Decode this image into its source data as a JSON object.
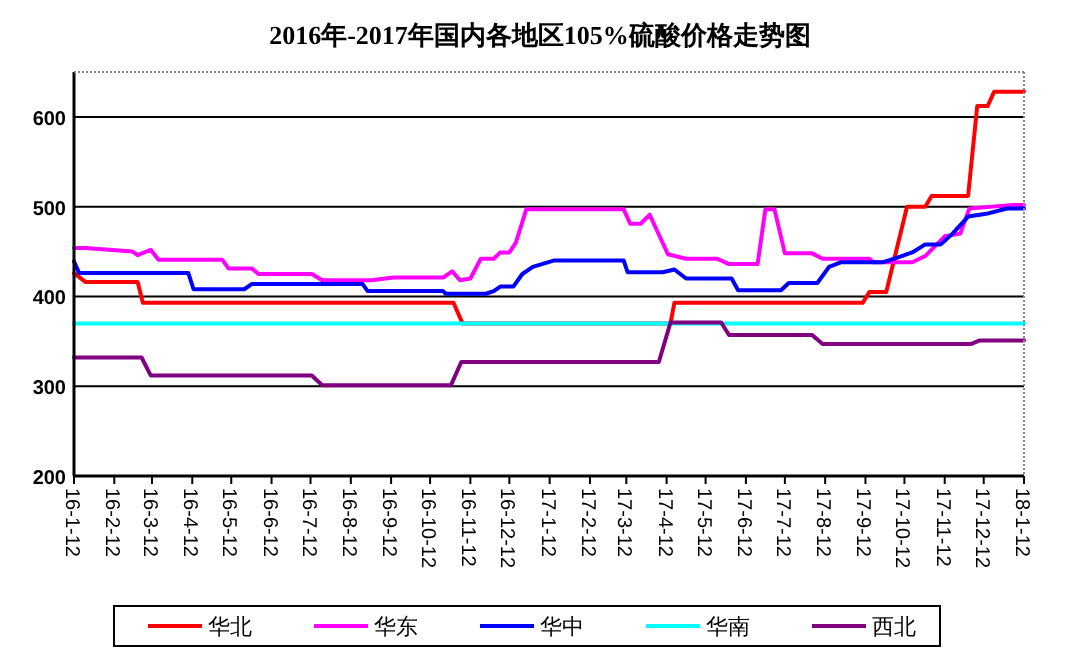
{
  "chart_data": {
    "type": "line",
    "title": "2016年-2017年国内各地区105%硫酸价格走势图",
    "xlim": [
      "2016-01-12",
      "2018-01-12"
    ],
    "ylim": [
      200,
      650
    ],
    "yticks": [
      200,
      300,
      400,
      500,
      600
    ],
    "xticks": [
      {
        "value": "2016-01-12",
        "label": "16-1-12"
      },
      {
        "value": "2016-02-12",
        "label": "16-2-12"
      },
      {
        "value": "2016-03-12",
        "label": "16-3-12"
      },
      {
        "value": "2016-04-12",
        "label": "16-4-12"
      },
      {
        "value": "2016-05-12",
        "label": "16-5-12"
      },
      {
        "value": "2016-06-12",
        "label": "16-6-12"
      },
      {
        "value": "2016-07-12",
        "label": "16-7-12"
      },
      {
        "value": "2016-08-12",
        "label": "16-8-12"
      },
      {
        "value": "2016-09-12",
        "label": "16-9-12"
      },
      {
        "value": "2016-10-12",
        "label": "16-10-12"
      },
      {
        "value": "2016-11-12",
        "label": "16-11-12"
      },
      {
        "value": "2016-12-12",
        "label": "16-12-12"
      },
      {
        "value": "2017-01-12",
        "label": "17-1-12"
      },
      {
        "value": "2017-02-12",
        "label": "17-2-12"
      },
      {
        "value": "2017-03-12",
        "label": "17-3-12"
      },
      {
        "value": "2017-04-12",
        "label": "17-4-12"
      },
      {
        "value": "2017-05-12",
        "label": "17-5-12"
      },
      {
        "value": "2017-06-12",
        "label": "17-6-12"
      },
      {
        "value": "2017-07-12",
        "label": "17-7-12"
      },
      {
        "value": "2017-08-12",
        "label": "17-8-12"
      },
      {
        "value": "2017-09-12",
        "label": "17-9-12"
      },
      {
        "value": "2017-10-12",
        "label": "17-10-12"
      },
      {
        "value": "2017-11-12",
        "label": "17-11-12"
      },
      {
        "value": "2017-12-12",
        "label": "17-12-12"
      },
      {
        "value": "2018-01-12",
        "label": "18-1-12"
      }
    ],
    "grid": "y",
    "legend": "bottom",
    "marker": "none",
    "line_style": "solid",
    "series": [
      {
        "name": "华北",
        "color": "#ff0000",
        "x": [
          "2016-01-12",
          "2016-01-21",
          "2016-03-01",
          "2016-03-05",
          "2016-10-30",
          "2016-11-06",
          "2017-04-15",
          "2017-04-18",
          "2017-09-10",
          "2017-09-15",
          "2017-09-28",
          "2017-10-14",
          "2017-10-28",
          "2017-11-02",
          "2017-11-30",
          "2017-12-07",
          "2017-12-15",
          "2017-12-20",
          "2018-01-12"
        ],
        "values": [
          426,
          416,
          416,
          393,
          393,
          370,
          370,
          393,
          393,
          405,
          405,
          500,
          500,
          512,
          512,
          612,
          612,
          628,
          628
        ]
      },
      {
        "name": "华东",
        "color": "#ff00ff",
        "x": [
          "2016-01-12",
          "2016-01-21",
          "2016-02-26",
          "2016-03-01",
          "2016-03-11",
          "2016-03-17",
          "2016-05-05",
          "2016-05-10",
          "2016-05-28",
          "2016-06-02",
          "2016-07-13",
          "2016-07-21",
          "2016-08-28",
          "2016-09-14",
          "2016-10-22",
          "2016-10-29",
          "2016-11-04",
          "2016-11-12",
          "2016-11-20",
          "2016-11-30",
          "2016-12-05",
          "2016-12-12",
          "2016-12-17",
          "2016-12-25",
          "2017-03-10",
          "2017-03-15",
          "2017-03-23",
          "2017-03-30",
          "2017-04-13",
          "2017-04-27",
          "2017-05-21",
          "2017-05-30",
          "2017-06-21",
          "2017-06-27",
          "2017-07-04",
          "2017-07-12",
          "2017-08-02",
          "2017-08-10",
          "2017-09-15",
          "2017-09-18",
          "2017-10-18",
          "2017-10-28",
          "2017-11-12",
          "2017-11-24",
          "2017-12-01",
          "2018-01-04",
          "2018-01-12"
        ],
        "values": [
          454,
          454,
          450,
          446,
          452,
          441,
          441,
          431,
          431,
          425,
          425,
          418,
          418,
          421,
          421,
          428,
          418,
          420,
          442,
          442,
          449,
          449,
          460,
          497,
          497,
          481,
          481,
          491,
          447,
          442,
          442,
          436,
          436,
          497,
          497,
          448,
          448,
          442,
          442,
          438,
          438,
          445,
          467,
          470,
          498,
          502,
          502
        ]
      },
      {
        "name": "华中",
        "color": "#0000ff",
        "x": [
          "2016-01-12",
          "2016-01-16",
          "2016-04-09",
          "2016-04-13",
          "2016-05-22",
          "2016-05-28",
          "2016-08-21",
          "2016-08-25",
          "2016-10-22",
          "2016-10-24",
          "2016-11-24",
          "2016-11-30",
          "2016-12-05",
          "2016-12-15",
          "2016-12-22",
          "2016-12-30",
          "2017-01-15",
          "2017-03-10",
          "2017-03-13",
          "2017-04-09",
          "2017-04-18",
          "2017-04-27",
          "2017-06-01",
          "2017-06-06",
          "2017-07-09",
          "2017-07-15",
          "2017-08-06",
          "2017-08-15",
          "2017-08-24",
          "2017-09-25",
          "2017-10-06",
          "2017-10-18",
          "2017-10-28",
          "2017-11-09",
          "2017-11-18",
          "2017-11-30",
          "2017-12-14",
          "2017-12-30",
          "2018-01-12"
        ],
        "values": [
          439,
          426,
          426,
          408,
          408,
          414,
          414,
          406,
          406,
          403,
          403,
          406,
          411,
          411,
          425,
          433,
          440,
          440,
          427,
          427,
          430,
          420,
          420,
          407,
          407,
          415,
          415,
          433,
          438,
          438,
          443,
          449,
          458,
          458,
          470,
          489,
          492,
          498,
          498
        ]
      },
      {
        "name": "华南",
        "color": "#00ffff",
        "x": [
          "2016-01-12",
          "2018-01-12"
        ],
        "values": [
          370,
          370
        ]
      },
      {
        "name": "西北",
        "color": "#800080",
        "x": [
          "2016-01-12",
          "2016-03-04",
          "2016-03-11",
          "2016-07-13",
          "2016-07-21",
          "2016-10-28",
          "2016-11-05",
          "2017-04-06",
          "2017-04-15",
          "2017-05-24",
          "2017-05-30",
          "2017-08-02",
          "2017-08-10",
          "2017-12-02",
          "2017-12-09",
          "2018-01-12"
        ],
        "values": [
          332,
          332,
          312,
          312,
          301,
          301,
          327,
          327,
          371,
          371,
          357,
          357,
          347,
          347,
          351,
          351
        ]
      }
    ]
  }
}
